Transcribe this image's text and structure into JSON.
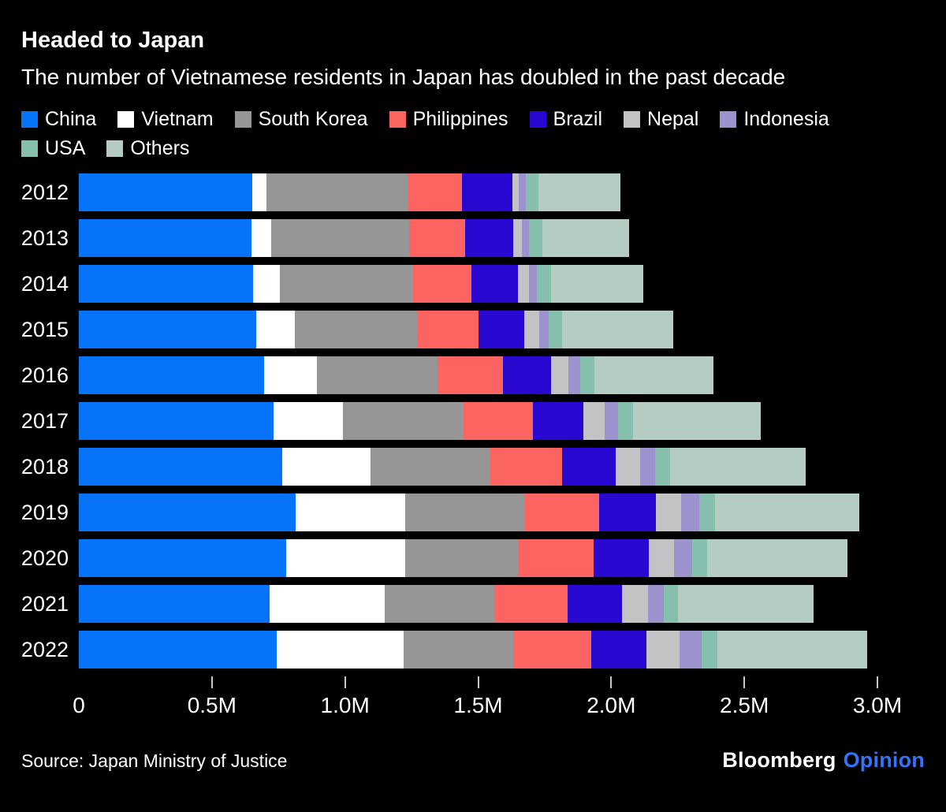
{
  "header": {
    "title": "Headed to Japan",
    "subtitle": "The number of Vietnamese residents in Japan has doubled in the past decade"
  },
  "chart_data": {
    "type": "bar",
    "orientation": "horizontal",
    "stacked": true,
    "grid": false,
    "legend_position": "top",
    "categories": [
      "2012",
      "2013",
      "2014",
      "2015",
      "2016",
      "2017",
      "2018",
      "2019",
      "2020",
      "2021",
      "2022"
    ],
    "series": [
      {
        "name": "China",
        "color": "#0673f8",
        "values": [
          652595,
          649078,
          654777,
          665847,
          695522,
          730890,
          764720,
          813675,
          778112,
          716606,
          744551
        ]
      },
      {
        "name": "Vietnam",
        "color": "#ffffff",
        "values": [
          52367,
          72256,
          99865,
          146956,
          199990,
          262405,
          330835,
          411968,
          448053,
          432934,
          476346
        ]
      },
      {
        "name": "South Korea",
        "color": "#969696",
        "values": [
          530048,
          519740,
          501230,
          457772,
          453096,
          450663,
          449634,
          446364,
          426908,
          409855,
          412340
        ]
      },
      {
        "name": "Philippines",
        "color": "#fb6461",
        "values": [
          202985,
          209183,
          217585,
          229595,
          243662,
          260553,
          271289,
          282798,
          279660,
          276615,
          291066
        ]
      },
      {
        "name": "Brazil",
        "color": "#2807d0",
        "values": [
          190609,
          181317,
          175410,
          173437,
          180923,
          191362,
          201865,
          211677,
          208538,
          204879,
          207081
        ]
      },
      {
        "name": "Nepal",
        "color": "#c3c3c5",
        "values": [
          24071,
          31537,
          42346,
          54775,
          67470,
          80038,
          88951,
          96824,
          95982,
          97109,
          125798
        ]
      },
      {
        "name": "Indonesia",
        "color": "#9c93ce",
        "values": [
          25532,
          27214,
          30210,
          35910,
          42850,
          49982,
          56346,
          66860,
          66832,
          59820,
          83169
        ]
      },
      {
        "name": "USA",
        "color": "#87bfae",
        "values": [
          48361,
          49981,
          51256,
          52271,
          53705,
          55713,
          57500,
          59172,
          55761,
          54162,
          57299
        ]
      },
      {
        "name": "Others",
        "color": "#b5ccc3",
        "values": [
          307088,
          326139,
          349152,
          415626,
          445604,
          480242,
          509953,
          543799,
          527270,
          508655,
          564319
        ]
      }
    ],
    "x_axis": {
      "max": 3000000,
      "tick_values": [
        0,
        500000,
        1000000,
        1500000,
        2000000,
        2500000,
        3000000
      ],
      "tick_labels": [
        "0",
        "0.5M",
        "1.0M",
        "1.5M",
        "2.0M",
        "2.5M",
        "3.0M"
      ]
    },
    "colors": {
      "background": "#000000",
      "text": "#ffffff",
      "tick": "#c9c9c9"
    }
  },
  "footer": {
    "source": "Source: Japan Ministry of Justice",
    "brand": "Bloomberg",
    "brand_suffix": "Opinion",
    "brand_suffix_color": "#3472f7"
  }
}
